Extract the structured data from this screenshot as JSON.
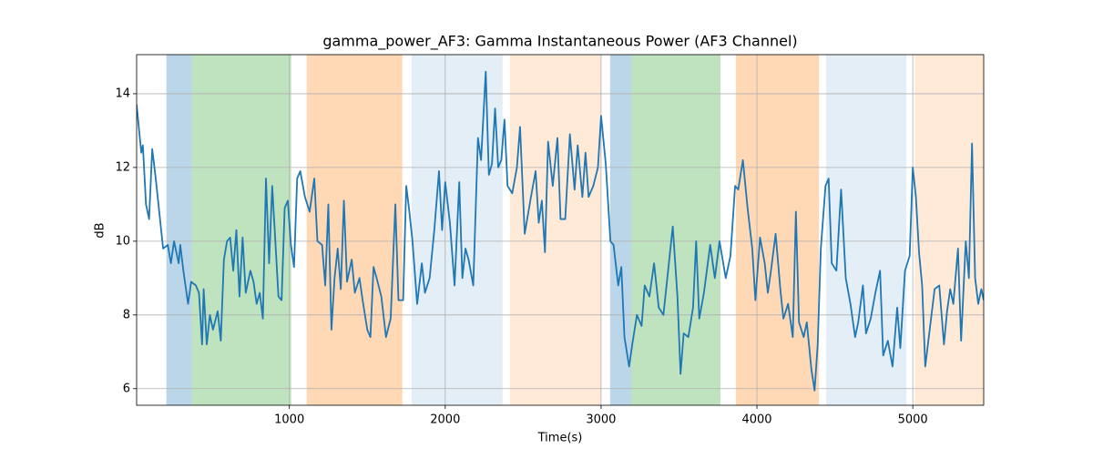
{
  "chart_data": {
    "type": "line",
    "title": "gamma_power_AF3: Gamma Instantaneous Power (AF3 Channel)",
    "x_label": "Time(s)",
    "y_label": "dB",
    "xlim": [
      20,
      5455
    ],
    "ylim": [
      5.55,
      15.06
    ],
    "xticks": [
      1000,
      2000,
      3000,
      4000,
      5000
    ],
    "yticks": [
      6,
      8,
      10,
      12,
      14
    ],
    "grid": true,
    "color": "#1f77b4",
    "spans": [
      {
        "start": 211,
        "end": 374,
        "color": "#1f77b4",
        "alpha": 0.3
      },
      {
        "start": 374,
        "end": 1012,
        "color": "#2ca02c",
        "alpha": 0.3
      },
      {
        "start": 1111,
        "end": 1725,
        "color": "#ff7f0e",
        "alpha": 0.3
      },
      {
        "start": 1784,
        "end": 2368,
        "color": "#1f77b4",
        "alpha": 0.12
      },
      {
        "start": 2415,
        "end": 3000,
        "color": "#ff7f0e",
        "alpha": 0.16
      },
      {
        "start": 3058,
        "end": 3193,
        "color": "#1f77b4",
        "alpha": 0.3
      },
      {
        "start": 3193,
        "end": 3766,
        "color": "#2ca02c",
        "alpha": 0.3
      },
      {
        "start": 3865,
        "end": 4398,
        "color": "#ff7f0e",
        "alpha": 0.3
      },
      {
        "start": 4444,
        "end": 4959,
        "color": "#1f77b4",
        "alpha": 0.12
      },
      {
        "start": 5012,
        "end": 5456,
        "color": "#ff7f0e",
        "alpha": 0.16
      }
    ],
    "x": [
      20,
      50,
      60,
      80,
      100,
      120,
      140,
      160,
      190,
      220,
      240,
      260,
      290,
      300,
      320,
      350,
      370,
      400,
      420,
      440,
      450,
      470,
      490,
      510,
      540,
      560,
      580,
      600,
      620,
      640,
      660,
      680,
      700,
      720,
      750,
      770,
      790,
      810,
      830,
      850,
      870,
      890,
      910,
      930,
      950,
      970,
      990,
      1010,
      1030,
      1050,
      1070,
      1100,
      1130,
      1160,
      1180,
      1210,
      1230,
      1250,
      1270,
      1290,
      1310,
      1330,
      1350,
      1370,
      1400,
      1420,
      1450,
      1470,
      1500,
      1520,
      1540,
      1560,
      1590,
      1620,
      1650,
      1680,
      1700,
      1730,
      1750,
      1770,
      1790,
      1820,
      1850,
      1870,
      1900,
      1930,
      1960,
      1980,
      2000,
      2030,
      2060,
      2090,
      2110,
      2130,
      2150,
      2180,
      2210,
      2230,
      2260,
      2280,
      2300,
      2320,
      2340,
      2360,
      2380,
      2400,
      2430,
      2460,
      2480,
      2510,
      2550,
      2580,
      2600,
      2620,
      2640,
      2660,
      2690,
      2720,
      2740,
      2770,
      2800,
      2830,
      2850,
      2880,
      2900,
      2920,
      2950,
      2980,
      3000,
      3030,
      3060,
      3080,
      3110,
      3130,
      3150,
      3180,
      3200,
      3230,
      3260,
      3280,
      3310,
      3340,
      3370,
      3400,
      3430,
      3460,
      3490,
      3510,
      3530,
      3560,
      3590,
      3610,
      3630,
      3660,
      3700,
      3730,
      3760,
      3800,
      3830,
      3860,
      3880,
      3910,
      3940,
      3970,
      3990,
      4020,
      4050,
      4070,
      4090,
      4120,
      4150,
      4170,
      4200,
      4230,
      4250,
      4270,
      4300,
      4320,
      4350,
      4370,
      4390,
      4410,
      4440,
      4460,
      4480,
      4510,
      4540,
      4570,
      4600,
      4630,
      4650,
      4680,
      4700,
      4730,
      4760,
      4790,
      4810,
      4840,
      4870,
      4900,
      4920,
      4950,
      4980,
      5000,
      5020,
      5040,
      5060,
      5080,
      5100,
      5120,
      5140,
      5170,
      5200,
      5220,
      5240,
      5260,
      5290,
      5310,
      5340,
      5360,
      5380,
      5400,
      5420,
      5440,
      5455
    ],
    "values": [
      13.7,
      12.4,
      12.6,
      11.0,
      10.6,
      12.5,
      11.8,
      11.0,
      9.8,
      9.9,
      9.4,
      10.0,
      9.4,
      9.9,
      9.2,
      8.3,
      8.9,
      8.8,
      8.6,
      7.2,
      8.7,
      7.2,
      8.0,
      7.6,
      8.1,
      7.3,
      9.5,
      10.0,
      10.1,
      9.2,
      10.3,
      8.5,
      10.1,
      8.6,
      9.2,
      8.9,
      8.3,
      8.6,
      7.9,
      11.7,
      9.4,
      11.5,
      10.0,
      8.5,
      8.4,
      10.9,
      11.1,
      9.9,
      9.3,
      11.7,
      11.9,
      11.2,
      10.8,
      11.7,
      10.0,
      9.9,
      8.8,
      11.0,
      7.6,
      9.0,
      9.8,
      8.7,
      11.1,
      8.9,
      9.5,
      8.6,
      9.0,
      8.4,
      7.6,
      7.4,
      9.3,
      9.0,
      8.5,
      7.4,
      7.9,
      11.0,
      8.4,
      8.4,
      11.5,
      10.8,
      10.0,
      8.3,
      9.4,
      8.6,
      9.0,
      10.3,
      11.9,
      10.3,
      11.6,
      10.5,
      8.8,
      11.6,
      9.0,
      9.8,
      9.5,
      8.8,
      12.8,
      12.2,
      14.6,
      11.8,
      12.1,
      13.6,
      12.0,
      12.2,
      13.3,
      11.5,
      11.3,
      12.0,
      13.1,
      10.2,
      11.2,
      11.9,
      10.5,
      11.1,
      9.7,
      12.7,
      11.5,
      12.8,
      10.6,
      10.6,
      12.9,
      11.4,
      12.6,
      11.2,
      12.4,
      11.2,
      11.5,
      12.0,
      13.4,
      12.1,
      10.0,
      9.9,
      8.8,
      9.3,
      7.4,
      6.6,
      7.2,
      8.0,
      7.7,
      8.8,
      8.5,
      9.4,
      8.2,
      8.0,
      9.2,
      10.4,
      8.5,
      6.4,
      7.5,
      7.4,
      8.2,
      10.0,
      7.9,
      8.6,
      9.9,
      9.0,
      10.0,
      9.0,
      9.6,
      11.5,
      11.4,
      12.2,
      10.9,
      9.8,
      8.4,
      10.1,
      9.4,
      8.6,
      9.2,
      10.2,
      8.7,
      7.9,
      8.3,
      7.4,
      10.8,
      7.8,
      7.4,
      7.8,
      6.5,
      5.95,
      7.2,
      9.8,
      11.5,
      11.7,
      9.4,
      9.2,
      11.4,
      9.0,
      8.3,
      7.4,
      7.8,
      8.8,
      7.5,
      7.9,
      8.6,
      9.2,
      6.9,
      7.3,
      6.6,
      8.2,
      7.1,
      9.2,
      9.6,
      12.0,
      11.2,
      9.7,
      8.8,
      6.6,
      7.3,
      8.0,
      8.7,
      8.8,
      7.2,
      8.1,
      8.7,
      8.3,
      9.8,
      7.3,
      10.0,
      9.0,
      12.65,
      9.0,
      8.3,
      8.7,
      8.4
    ]
  }
}
